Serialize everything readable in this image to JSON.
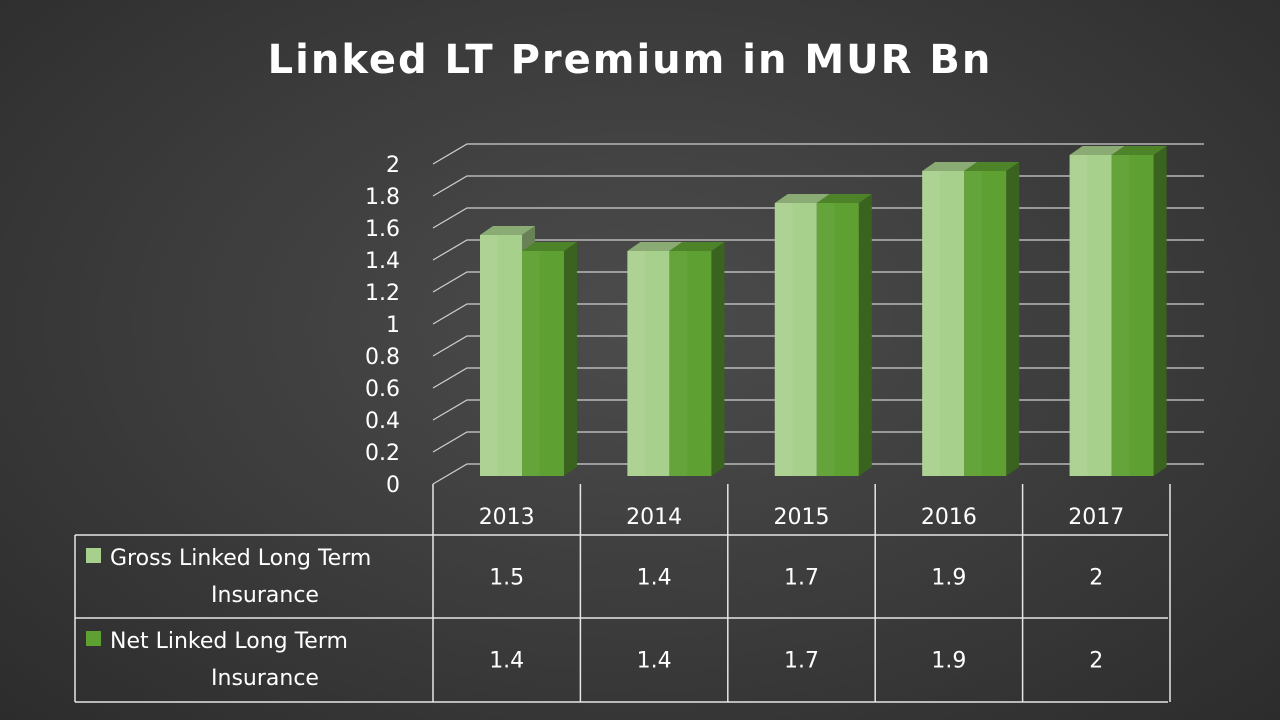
{
  "chart_data": {
    "type": "bar",
    "title": "Linked LT Premium in MUR Bn",
    "categories": [
      "2013",
      "2014",
      "2015",
      "2016",
      "2017"
    ],
    "series": [
      {
        "name": "Gross Linked Long Term Insurance",
        "name_lines": [
          "Gross Linked Long Term",
          "Insurance"
        ],
        "values": [
          1.5,
          1.4,
          1.7,
          1.9,
          2
        ],
        "value_labels": [
          "1.5",
          "1.4",
          "1.7",
          "1.9",
          "2"
        ],
        "color": "#a8d08d"
      },
      {
        "name": "Net Linked Long Term Insurance",
        "name_lines": [
          "Net Linked Long Term",
          "Insurance"
        ],
        "values": [
          1.4,
          1.4,
          1.7,
          1.9,
          2
        ],
        "value_labels": [
          "1.4",
          "1.4",
          "1.7",
          "1.9",
          "2"
        ],
        "color": "#5ea032"
      }
    ],
    "ylim": [
      0,
      2
    ],
    "y_ticks": [
      "0",
      "0.2",
      "0.4",
      "0.6",
      "0.8",
      "1",
      "1.2",
      "1.4",
      "1.6",
      "1.8",
      "2"
    ],
    "grid": true,
    "legend": "data-table",
    "xlabel": "",
    "ylabel": ""
  }
}
